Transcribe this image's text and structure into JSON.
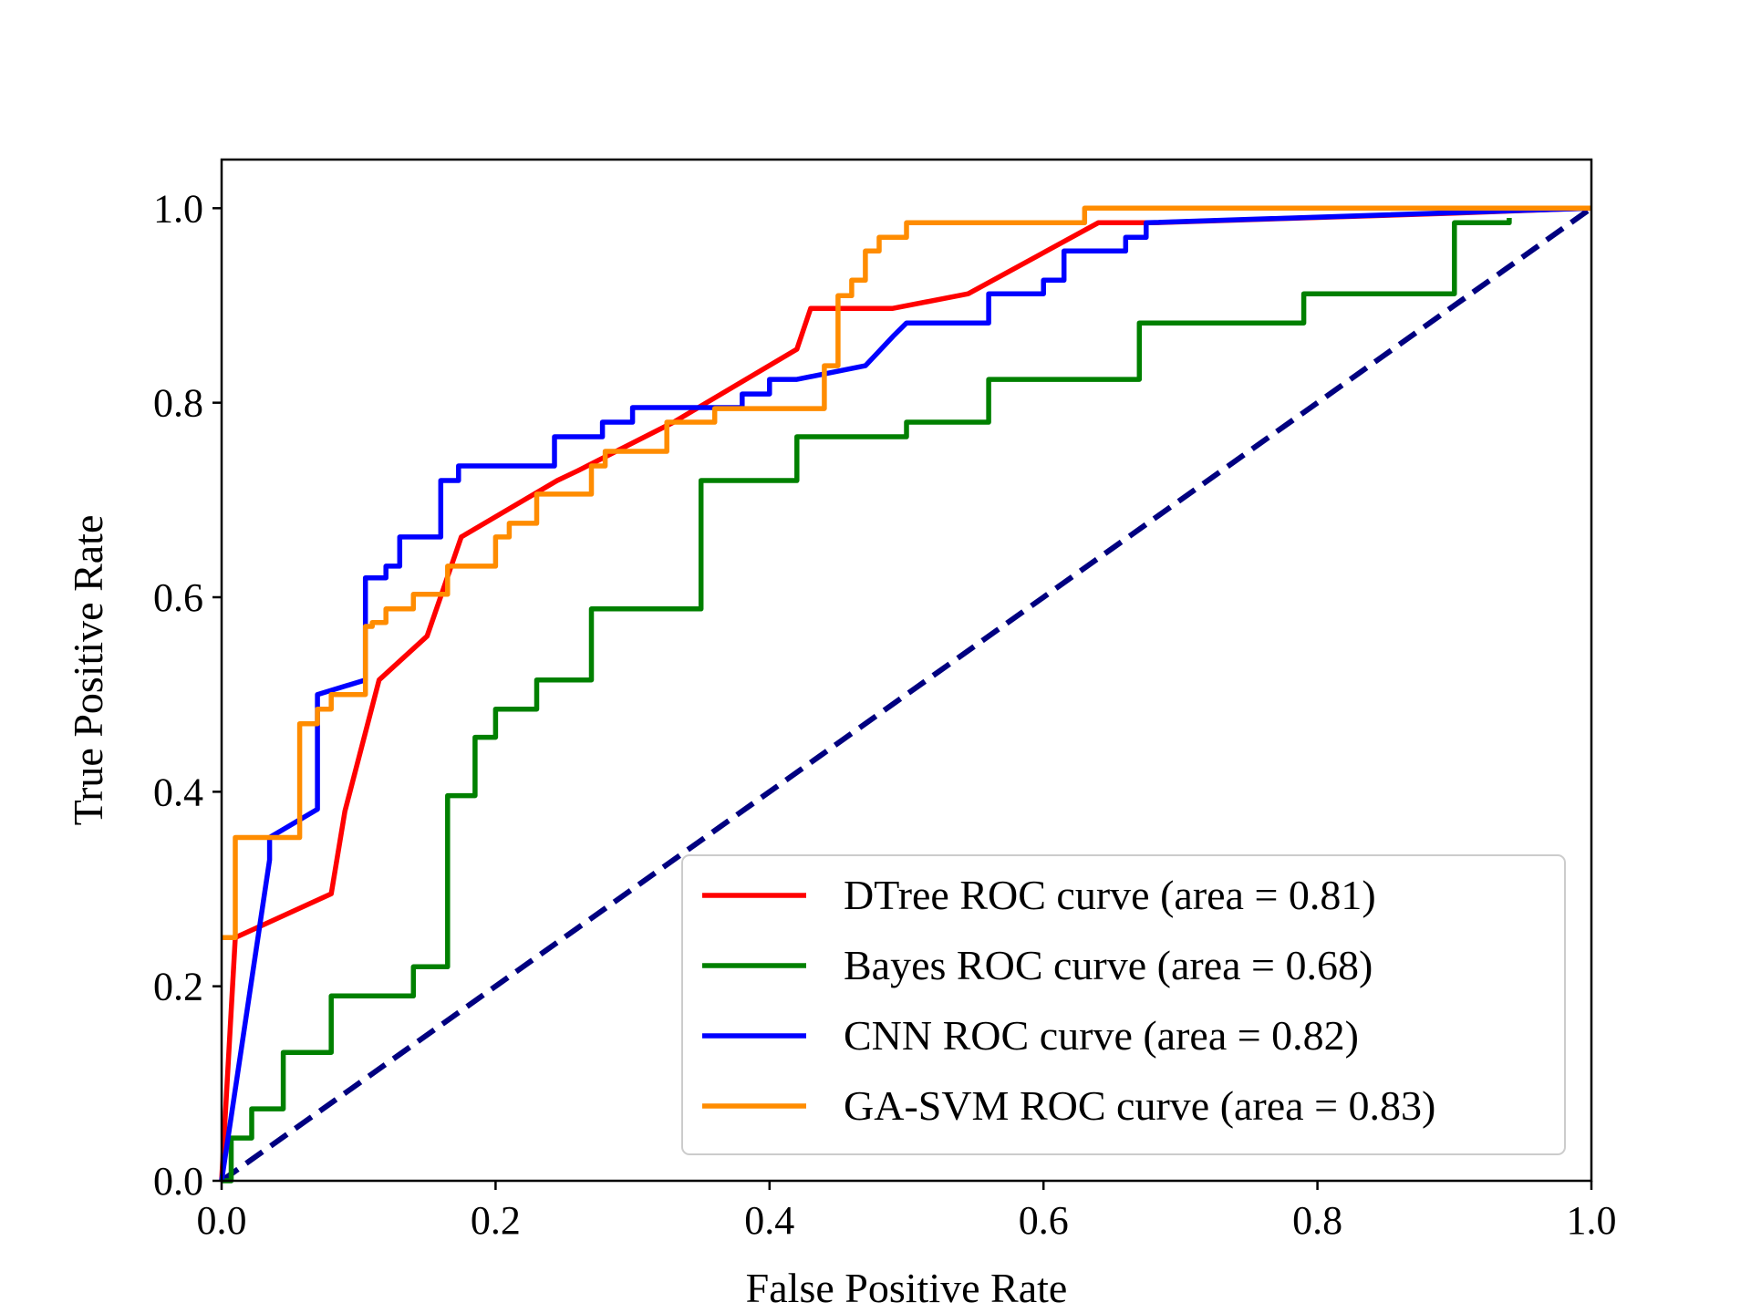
{
  "chart_data": {
    "type": "line",
    "title": "",
    "xlabel": "False Positive Rate",
    "ylabel": "True Positive Rate",
    "xlim": [
      0.0,
      1.0
    ],
    "ylim": [
      0.0,
      1.05
    ],
    "xticks": [
      "0.0",
      "0.2",
      "0.4",
      "0.6",
      "0.8",
      "1.0"
    ],
    "yticks": [
      "0.0",
      "0.2",
      "0.4",
      "0.6",
      "0.8",
      "1.0"
    ],
    "grid": false,
    "legend_position": "lower-right",
    "series": [
      {
        "name": "DTree ROC curve (area = 0.81)",
        "color": "#ff0000",
        "style": "solid",
        "x": [
          0.0,
          0.01,
          0.08,
          0.09,
          0.115,
          0.15,
          0.175,
          0.245,
          0.26,
          0.33,
          0.42,
          0.43,
          0.49,
          0.545,
          0.64,
          0.68,
          0.9,
          1.0
        ],
        "y": [
          0.0,
          0.25,
          0.295,
          0.38,
          0.515,
          0.56,
          0.662,
          0.72,
          0.73,
          0.78,
          0.855,
          0.897,
          0.897,
          0.912,
          0.985,
          0.985,
          0.995,
          1.0
        ]
      },
      {
        "name": "Bayes ROC curve (area = 0.68)",
        "color": "#008000",
        "style": "step",
        "x": [
          0.0,
          0.007,
          0.022,
          0.045,
          0.08,
          0.14,
          0.165,
          0.185,
          0.2,
          0.23,
          0.27,
          0.35,
          0.42,
          0.5,
          0.56,
          0.67,
          0.79,
          0.9,
          0.94
        ],
        "y": [
          0.0,
          0.044,
          0.074,
          0.132,
          0.19,
          0.22,
          0.396,
          0.456,
          0.485,
          0.515,
          0.588,
          0.72,
          0.765,
          0.78,
          0.824,
          0.882,
          0.912,
          0.985,
          0.99
        ]
      },
      {
        "name": "CNN ROC curve (area = 0.82)",
        "color": "#0000ff",
        "style": "solid",
        "x": [
          0.0,
          0.035,
          0.035,
          0.07,
          0.07,
          0.105,
          0.105,
          0.12,
          0.12,
          0.13,
          0.13,
          0.16,
          0.16,
          0.173,
          0.173,
          0.243,
          0.243,
          0.278,
          0.278,
          0.3,
          0.3,
          0.38,
          0.38,
          0.4,
          0.4,
          0.42,
          0.42,
          0.47,
          0.47,
          0.48,
          0.48,
          0.49,
          0.49,
          0.5,
          0.5,
          0.56,
          0.56,
          0.6,
          0.6,
          0.615,
          0.615,
          0.66,
          0.66,
          0.675,
          0.675,
          1.0
        ],
        "y": [
          0.0,
          0.33,
          0.353,
          0.382,
          0.5,
          0.515,
          0.62,
          0.62,
          0.632,
          0.632,
          0.662,
          0.662,
          0.72,
          0.72,
          0.735,
          0.735,
          0.765,
          0.765,
          0.78,
          0.78,
          0.795,
          0.795,
          0.809,
          0.809,
          0.824,
          0.824,
          0.824,
          0.838,
          0.838,
          0.853,
          0.853,
          0.868,
          0.868,
          0.882,
          0.882,
          0.882,
          0.912,
          0.912,
          0.926,
          0.926,
          0.956,
          0.956,
          0.97,
          0.97,
          0.985,
          1.0
        ]
      },
      {
        "name": "GA-SVM ROC curve (area = 0.83)",
        "color": "#ff8c00",
        "style": "step",
        "x": [
          0.0,
          0.01,
          0.057,
          0.07,
          0.08,
          0.105,
          0.11,
          0.12,
          0.14,
          0.16,
          0.165,
          0.2,
          0.21,
          0.23,
          0.27,
          0.28,
          0.325,
          0.36,
          0.44,
          0.45,
          0.46,
          0.47,
          0.48,
          0.5,
          0.63,
          1.0
        ],
        "y": [
          0.25,
          0.353,
          0.47,
          0.485,
          0.5,
          0.57,
          0.574,
          0.588,
          0.603,
          0.603,
          0.632,
          0.662,
          0.676,
          0.706,
          0.735,
          0.75,
          0.78,
          0.794,
          0.838,
          0.91,
          0.926,
          0.956,
          0.97,
          0.985,
          1.0,
          1.0
        ]
      },
      {
        "name": "",
        "color": "#000080",
        "style": "dashed",
        "x": [
          0.0,
          1.0
        ],
        "y": [
          0.0,
          1.0
        ]
      }
    ]
  }
}
